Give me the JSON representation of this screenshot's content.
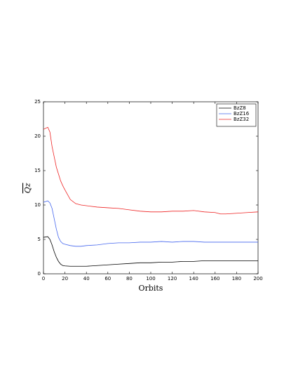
{
  "chart_data": {
    "type": "line",
    "x_label": "Orbits",
    "y_label": "Qz",
    "x": [
      0,
      4,
      6,
      8,
      10,
      12,
      14,
      16,
      18,
      20,
      25,
      30,
      35,
      40,
      50,
      60,
      70,
      80,
      90,
      100,
      110,
      120,
      130,
      140,
      150,
      160,
      165,
      170,
      180,
      190,
      200
    ],
    "series": [
      {
        "name": "BzZ8",
        "color": "#000000",
        "values": [
          5.3,
          5.4,
          5.0,
          4.2,
          3.2,
          2.4,
          1.8,
          1.4,
          1.2,
          1.15,
          1.1,
          1.1,
          1.1,
          1.1,
          1.2,
          1.3,
          1.4,
          1.5,
          1.6,
          1.6,
          1.7,
          1.7,
          1.8,
          1.8,
          1.9,
          1.9,
          1.9,
          1.9,
          1.9,
          1.9,
          1.9
        ]
      },
      {
        "name": "BzZ16",
        "color": "#4466ee",
        "values": [
          10.4,
          10.6,
          10.3,
          9.5,
          8,
          6.5,
          5.3,
          4.7,
          4.4,
          4.3,
          4.1,
          4.0,
          4.0,
          4.1,
          4.2,
          4.4,
          4.5,
          4.5,
          4.6,
          4.6,
          4.7,
          4.6,
          4.7,
          4.7,
          4.6,
          4.6,
          4.6,
          4.6,
          4.6,
          4.6,
          4.6
        ]
      },
      {
        "name": "BzZ32",
        "color": "#ee2222",
        "values": [
          21,
          21.3,
          20.6,
          18.5,
          17,
          15.5,
          14.5,
          13.5,
          12.8,
          12.2,
          10.8,
          10.2,
          10,
          9.9,
          9.7,
          9.6,
          9.5,
          9.3,
          9.1,
          9.0,
          9.0,
          9.1,
          9.1,
          9.2,
          9.0,
          8.9,
          8.7,
          8.7,
          8.8,
          8.9,
          9.0
        ]
      }
    ],
    "xlim": [
      0,
      200
    ],
    "xticks": [
      0,
      20,
      40,
      60,
      80,
      100,
      120,
      140,
      160,
      180,
      200
    ],
    "ylim": [
      0,
      25
    ],
    "yticks": [
      0,
      5,
      10,
      15,
      20,
      25
    ],
    "legend": "upper-right"
  }
}
